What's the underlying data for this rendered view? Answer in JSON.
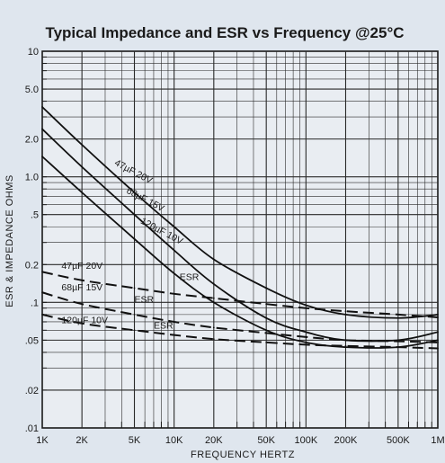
{
  "chart_data": {
    "type": "line",
    "title": "Typical Impedance and ESR vs Frequency @25°C",
    "xlabel": "FREQUENCY  HERTZ",
    "ylabel": "ESR & IMPEDANCE  OHMS",
    "x_scale": "log",
    "y_scale": "log",
    "xlim": [
      1000,
      1000000
    ],
    "ylim": [
      0.01,
      10
    ],
    "grid": true,
    "x_ticks": [
      {
        "value": 1000,
        "label": "1K"
      },
      {
        "value": 2000,
        "label": "2K"
      },
      {
        "value": 5000,
        "label": "5K"
      },
      {
        "value": 10000,
        "label": "10K"
      },
      {
        "value": 20000,
        "label": "20K"
      },
      {
        "value": 50000,
        "label": "50K"
      },
      {
        "value": 100000,
        "label": "100K"
      },
      {
        "value": 200000,
        "label": "200K"
      },
      {
        "value": 500000,
        "label": "500K"
      },
      {
        "value": 1000000,
        "label": "1M"
      }
    ],
    "y_ticks": [
      {
        "value": 10,
        "label": "10"
      },
      {
        "value": 5,
        "label": "5.0"
      },
      {
        "value": 2,
        "label": "2.0"
      },
      {
        "value": 1,
        "label": "1.0"
      },
      {
        "value": 0.5,
        "label": ".5"
      },
      {
        "value": 0.2,
        "label": "0.2"
      },
      {
        "value": 0.1,
        "label": ".1"
      },
      {
        "value": 0.05,
        "label": ".05"
      },
      {
        "value": 0.02,
        "label": ".02"
      },
      {
        "value": 0.01,
        "label": ".01"
      }
    ],
    "series": [
      {
        "name": "47µF 20V",
        "kind": "impedance",
        "style": "solid",
        "points": [
          [
            1000,
            3.6
          ],
          [
            2000,
            1.8
          ],
          [
            5000,
            0.75
          ],
          [
            10000,
            0.4
          ],
          [
            20000,
            0.22
          ],
          [
            50000,
            0.13
          ],
          [
            100000,
            0.095
          ],
          [
            200000,
            0.08
          ],
          [
            500000,
            0.075
          ],
          [
            1000000,
            0.08
          ]
        ]
      },
      {
        "name": "68µF 15V",
        "kind": "impedance",
        "style": "solid",
        "points": [
          [
            1000,
            2.4
          ],
          [
            2000,
            1.2
          ],
          [
            5000,
            0.5
          ],
          [
            10000,
            0.26
          ],
          [
            20000,
            0.14
          ],
          [
            50000,
            0.075
          ],
          [
            100000,
            0.058
          ],
          [
            200000,
            0.05
          ],
          [
            500000,
            0.05
          ],
          [
            1000000,
            0.058
          ]
        ]
      },
      {
        "name": "120µF 10V",
        "kind": "impedance",
        "style": "solid",
        "points": [
          [
            1000,
            1.45
          ],
          [
            2000,
            0.75
          ],
          [
            5000,
            0.32
          ],
          [
            10000,
            0.17
          ],
          [
            20000,
            0.1
          ],
          [
            50000,
            0.06
          ],
          [
            100000,
            0.048
          ],
          [
            200000,
            0.044
          ],
          [
            500000,
            0.044
          ],
          [
            1000000,
            0.05
          ]
        ]
      },
      {
        "name": "47µF 20V ESR",
        "kind": "esr",
        "style": "dashed",
        "points": [
          [
            1000,
            0.175
          ],
          [
            2000,
            0.15
          ],
          [
            5000,
            0.13
          ],
          [
            10000,
            0.117
          ],
          [
            20000,
            0.108
          ],
          [
            50000,
            0.097
          ],
          [
            100000,
            0.09
          ],
          [
            200000,
            0.085
          ],
          [
            500000,
            0.08
          ],
          [
            1000000,
            0.076
          ]
        ]
      },
      {
        "name": "68µF 15V ESR",
        "kind": "esr",
        "style": "dashed",
        "points": [
          [
            1000,
            0.12
          ],
          [
            2000,
            0.097
          ],
          [
            5000,
            0.08
          ],
          [
            10000,
            0.07
          ],
          [
            20000,
            0.063
          ],
          [
            50000,
            0.057
          ],
          [
            100000,
            0.053
          ],
          [
            200000,
            0.05
          ],
          [
            500000,
            0.049
          ],
          [
            1000000,
            0.048
          ]
        ]
      },
      {
        "name": "120µF 10V ESR",
        "kind": "esr",
        "style": "dashed",
        "points": [
          [
            1000,
            0.08
          ],
          [
            2000,
            0.068
          ],
          [
            5000,
            0.06
          ],
          [
            10000,
            0.055
          ],
          [
            20000,
            0.051
          ],
          [
            50000,
            0.048
          ],
          [
            100000,
            0.046
          ],
          [
            200000,
            0.045
          ],
          [
            500000,
            0.044
          ],
          [
            1000000,
            0.043
          ]
        ]
      }
    ],
    "labels": [
      {
        "text": "47µF 20V",
        "x": 3500,
        "y": 1.25,
        "angle": 28
      },
      {
        "text": "68µF 15V",
        "x": 4300,
        "y": 0.75,
        "angle": 28
      },
      {
        "text": "120µF 10V",
        "x": 5500,
        "y": 0.43,
        "angle": 28
      },
      {
        "text": "47µF 20V",
        "x": 1400,
        "y": 0.185,
        "angle": 0
      },
      {
        "text": "ESR",
        "x": 11000,
        "y": 0.15,
        "angle": 0
      },
      {
        "text": "68µF 15V",
        "x": 1400,
        "y": 0.125,
        "angle": 0
      },
      {
        "text": "ESR",
        "x": 5000,
        "y": 0.1,
        "angle": 0
      },
      {
        "text": "120µF 10V",
        "x": 1400,
        "y": 0.068,
        "angle": 0
      },
      {
        "text": "ESR",
        "x": 7000,
        "y": 0.062,
        "angle": 0
      }
    ]
  }
}
